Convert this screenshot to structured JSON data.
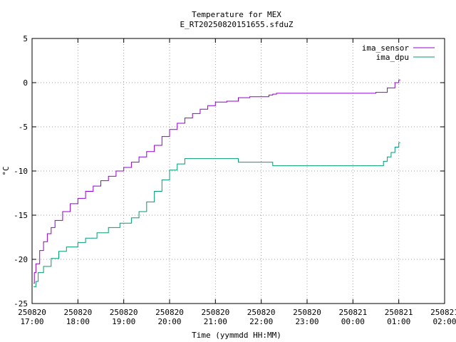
{
  "chart_data": {
    "type": "line",
    "title": "Temperature for MEX",
    "subtitle": "E_RT20250820151655.sfduZ",
    "xlabel": "Time (yymmdd HH:MM)",
    "ylabel": "°C",
    "xlim": [
      "2025-08-20 17:00",
      "2025-08-21 02:00"
    ],
    "ylim": [
      -25,
      5
    ],
    "grid": true,
    "legend_position": "top-right",
    "x_ticks": [
      {
        "date": "250820",
        "time": "17:00"
      },
      {
        "date": "250820",
        "time": "18:00"
      },
      {
        "date": "250820",
        "time": "19:00"
      },
      {
        "date": "250820",
        "time": "20:00"
      },
      {
        "date": "250820",
        "time": "21:00"
      },
      {
        "date": "250820",
        "time": "22:00"
      },
      {
        "date": "250820",
        "time": "23:00"
      },
      {
        "date": "250821",
        "time": "00:00"
      },
      {
        "date": "250821",
        "time": "01:00"
      },
      {
        "date": "250821",
        "time": "02:00"
      }
    ],
    "y_ticks": [
      "5",
      "0",
      "-5",
      "-10",
      "-15",
      "-20",
      "-25"
    ],
    "series": [
      {
        "name": "ima_sensor",
        "color": "#9400d3",
        "points": [
          [
            "2025-08-20 17:02",
            -22.7
          ],
          [
            "2025-08-20 17:03",
            -21.5
          ],
          [
            "2025-08-20 17:05",
            -20.5
          ],
          [
            "2025-08-20 17:10",
            -19.0
          ],
          [
            "2025-08-20 17:15",
            -18.0
          ],
          [
            "2025-08-20 17:20",
            -17.1
          ],
          [
            "2025-08-20 17:25",
            -16.4
          ],
          [
            "2025-08-20 17:30",
            -15.6
          ],
          [
            "2025-08-20 17:40",
            -14.6
          ],
          [
            "2025-08-20 17:50",
            -13.7
          ],
          [
            "2025-08-20 18:00",
            -13.1
          ],
          [
            "2025-08-20 18:10",
            -12.3
          ],
          [
            "2025-08-20 18:20",
            -11.7
          ],
          [
            "2025-08-20 18:30",
            -11.1
          ],
          [
            "2025-08-20 18:40",
            -10.6
          ],
          [
            "2025-08-20 18:50",
            -10.0
          ],
          [
            "2025-08-20 19:00",
            -9.6
          ],
          [
            "2025-08-20 19:10",
            -9.0
          ],
          [
            "2025-08-20 19:20",
            -8.4
          ],
          [
            "2025-08-20 19:30",
            -7.8
          ],
          [
            "2025-08-20 19:40",
            -7.1
          ],
          [
            "2025-08-20 19:50",
            -6.1
          ],
          [
            "2025-08-20 20:00",
            -5.3
          ],
          [
            "2025-08-20 20:10",
            -4.6
          ],
          [
            "2025-08-20 20:20",
            -4.0
          ],
          [
            "2025-08-20 20:30",
            -3.5
          ],
          [
            "2025-08-20 20:40",
            -3.0
          ],
          [
            "2025-08-20 20:50",
            -2.6
          ],
          [
            "2025-08-20 21:00",
            -2.2
          ],
          [
            "2025-08-20 21:15",
            -2.1
          ],
          [
            "2025-08-20 21:30",
            -1.7
          ],
          [
            "2025-08-20 21:45",
            -1.6
          ],
          [
            "2025-08-20 22:10",
            -1.4
          ],
          [
            "2025-08-20 22:15",
            -1.3
          ],
          [
            "2025-08-20 22:20",
            -1.2
          ],
          [
            "2025-08-20 23:00",
            -1.2
          ],
          [
            "2025-08-21 00:00",
            -1.2
          ],
          [
            "2025-08-21 00:30",
            -1.1
          ],
          [
            "2025-08-21 00:45",
            -0.6
          ],
          [
            "2025-08-21 00:55",
            0.0
          ],
          [
            "2025-08-21 01:00",
            0.3
          ],
          [
            "2025-08-21 01:02",
            0.3
          ]
        ]
      },
      {
        "name": "ima_dpu",
        "color": "#009e73",
        "points": [
          [
            "2025-08-20 17:02",
            -23.1
          ],
          [
            "2025-08-20 17:05",
            -22.5
          ],
          [
            "2025-08-20 17:08",
            -21.5
          ],
          [
            "2025-08-20 17:15",
            -20.8
          ],
          [
            "2025-08-20 17:25",
            -19.9
          ],
          [
            "2025-08-20 17:35",
            -19.1
          ],
          [
            "2025-08-20 17:45",
            -18.6
          ],
          [
            "2025-08-20 18:00",
            -18.1
          ],
          [
            "2025-08-20 18:10",
            -17.6
          ],
          [
            "2025-08-20 18:25",
            -17.0
          ],
          [
            "2025-08-20 18:40",
            -16.4
          ],
          [
            "2025-08-20 18:55",
            -15.9
          ],
          [
            "2025-08-20 19:10",
            -15.3
          ],
          [
            "2025-08-20 19:20",
            -14.6
          ],
          [
            "2025-08-20 19:30",
            -13.5
          ],
          [
            "2025-08-20 19:40",
            -12.3
          ],
          [
            "2025-08-20 19:50",
            -11.0
          ],
          [
            "2025-08-20 20:00",
            -9.9
          ],
          [
            "2025-08-20 20:10",
            -9.2
          ],
          [
            "2025-08-20 20:20",
            -8.6
          ],
          [
            "2025-08-20 21:00",
            -8.6
          ],
          [
            "2025-08-20 21:15",
            -8.6
          ],
          [
            "2025-08-20 21:30",
            -9.0
          ],
          [
            "2025-08-20 22:00",
            -9.0
          ],
          [
            "2025-08-20 22:15",
            -9.4
          ],
          [
            "2025-08-20 23:00",
            -9.4
          ],
          [
            "2025-08-21 00:00",
            -9.4
          ],
          [
            "2025-08-21 00:35",
            -9.4
          ],
          [
            "2025-08-21 00:40",
            -8.9
          ],
          [
            "2025-08-21 00:45",
            -8.4
          ],
          [
            "2025-08-21 00:50",
            -7.9
          ],
          [
            "2025-08-21 00:55",
            -7.3
          ],
          [
            "2025-08-21 01:00",
            -6.8
          ],
          [
            "2025-08-21 01:02",
            -6.8
          ]
        ]
      }
    ]
  }
}
